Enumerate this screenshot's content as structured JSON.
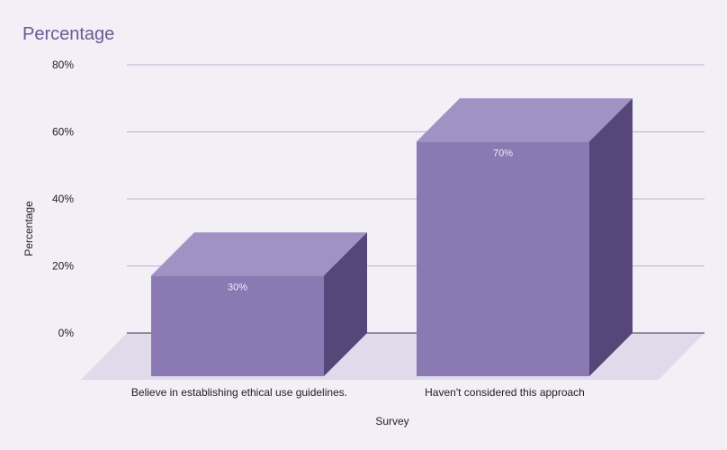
{
  "chart_data": {
    "type": "bar",
    "title": "Percentage",
    "xlabel": "Survey",
    "ylabel": "Percentage",
    "categories": [
      "Believe in establishing ethical use guidelines.",
      "Haven't considered this approach"
    ],
    "values": [
      30,
      70
    ],
    "value_labels": [
      "30%",
      "70%"
    ],
    "ylim": [
      0,
      80
    ],
    "yticks": [
      0,
      20,
      40,
      60,
      80
    ],
    "ytick_labels": [
      "0%",
      "20%",
      "40%",
      "60%",
      "80%"
    ],
    "grid": true,
    "legend": "none",
    "style": "3d-column",
    "colors": {
      "front": "#8a79b3",
      "top": "#a192c4",
      "side": "#564679",
      "floor": "#dfdbea",
      "title": "#6a5a92"
    }
  }
}
